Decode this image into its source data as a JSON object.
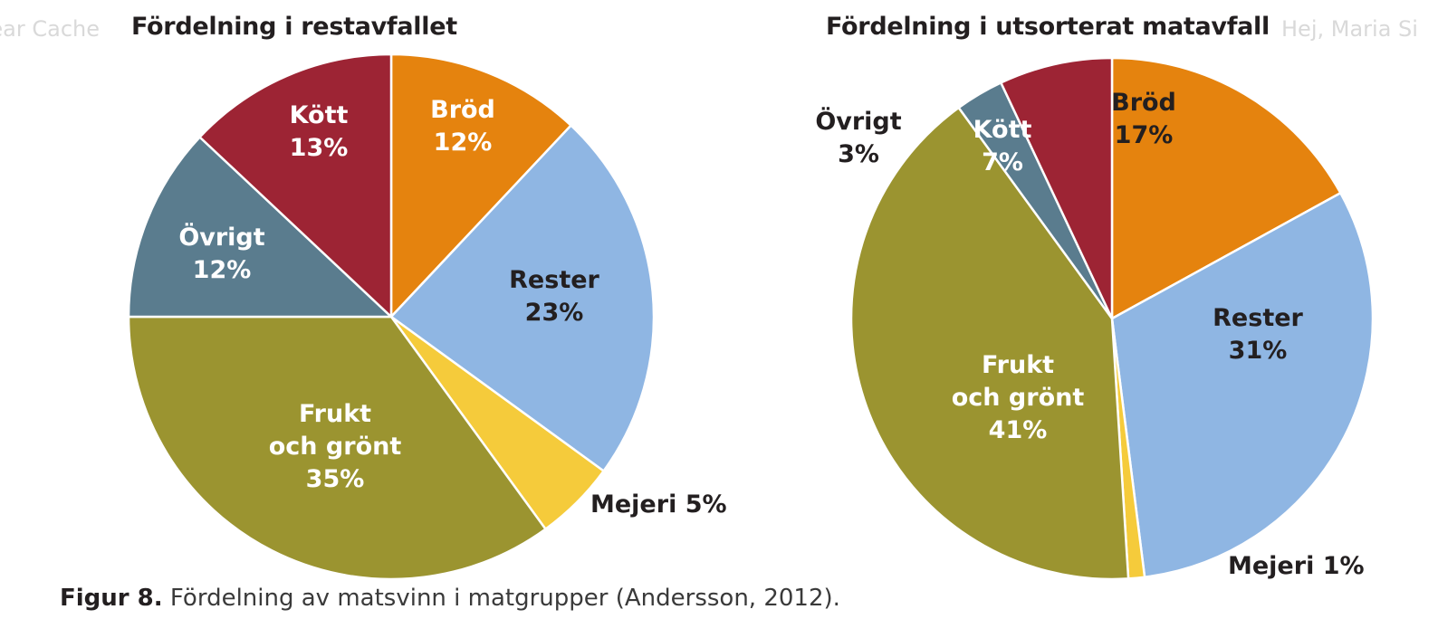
{
  "overlay": {
    "left_text": "Clear Cache",
    "right_text": "Hej, Maria Si"
  },
  "colors": {
    "brod": "#e5830e",
    "rester": "#8fb6e3",
    "mejeri": "#f5cb3b",
    "frukt": "#9b9430",
    "ovrigt": "#5a7c8e",
    "kott": "#9d2434",
    "white_text": "#ffffff",
    "dark_text": "#231f20"
  },
  "chart_data": [
    {
      "type": "pie",
      "title": "Fördelning i restavfallet",
      "slices": [
        {
          "name": "Bröd",
          "value": 12,
          "label": [
            "Bröd",
            "12%"
          ],
          "color_key": "brod"
        },
        {
          "name": "Rester",
          "value": 23,
          "label": [
            "Rester",
            "23%"
          ],
          "color_key": "rester"
        },
        {
          "name": "Mejeri",
          "value": 5,
          "label": [
            "Mejeri 5%"
          ],
          "color_key": "mejeri"
        },
        {
          "name": "Frukt och grönt",
          "value": 35,
          "label": [
            "Frukt",
            "och grönt",
            "35%"
          ],
          "color_key": "frukt"
        },
        {
          "name": "Övrigt",
          "value": 12,
          "label": [
            "Övrigt",
            "12%"
          ],
          "color_key": "ovrigt"
        },
        {
          "name": "Kött",
          "value": 13,
          "label": [
            "Kött",
            "13%"
          ],
          "color_key": "kott"
        }
      ]
    },
    {
      "type": "pie",
      "title": "Fördelning i utsorterat matavfall",
      "slices": [
        {
          "name": "Bröd",
          "value": 17,
          "label": [
            "Bröd",
            "17%"
          ],
          "color_key": "brod"
        },
        {
          "name": "Rester",
          "value": 31,
          "label": [
            "Rester",
            "31%"
          ],
          "color_key": "rester"
        },
        {
          "name": "Mejeri",
          "value": 1,
          "label": [
            "Mejeri 1%"
          ],
          "color_key": "mejeri"
        },
        {
          "name": "Frukt och grönt",
          "value": 41,
          "label": [
            "Frukt",
            "och grönt",
            "41%"
          ],
          "color_key": "frukt"
        },
        {
          "name": "Övrigt",
          "value": 3,
          "label": [
            "Övrigt",
            "3%"
          ],
          "color_key": "ovrigt"
        },
        {
          "name": "Kött",
          "value": 7,
          "label": [
            "Kött",
            "7%"
          ],
          "color_key": "kott"
        }
      ]
    }
  ],
  "caption": {
    "figure_label": "Figur 8.",
    "text": " Fördelning av matsvinn i matgrupper (Andersson, 2012)."
  }
}
